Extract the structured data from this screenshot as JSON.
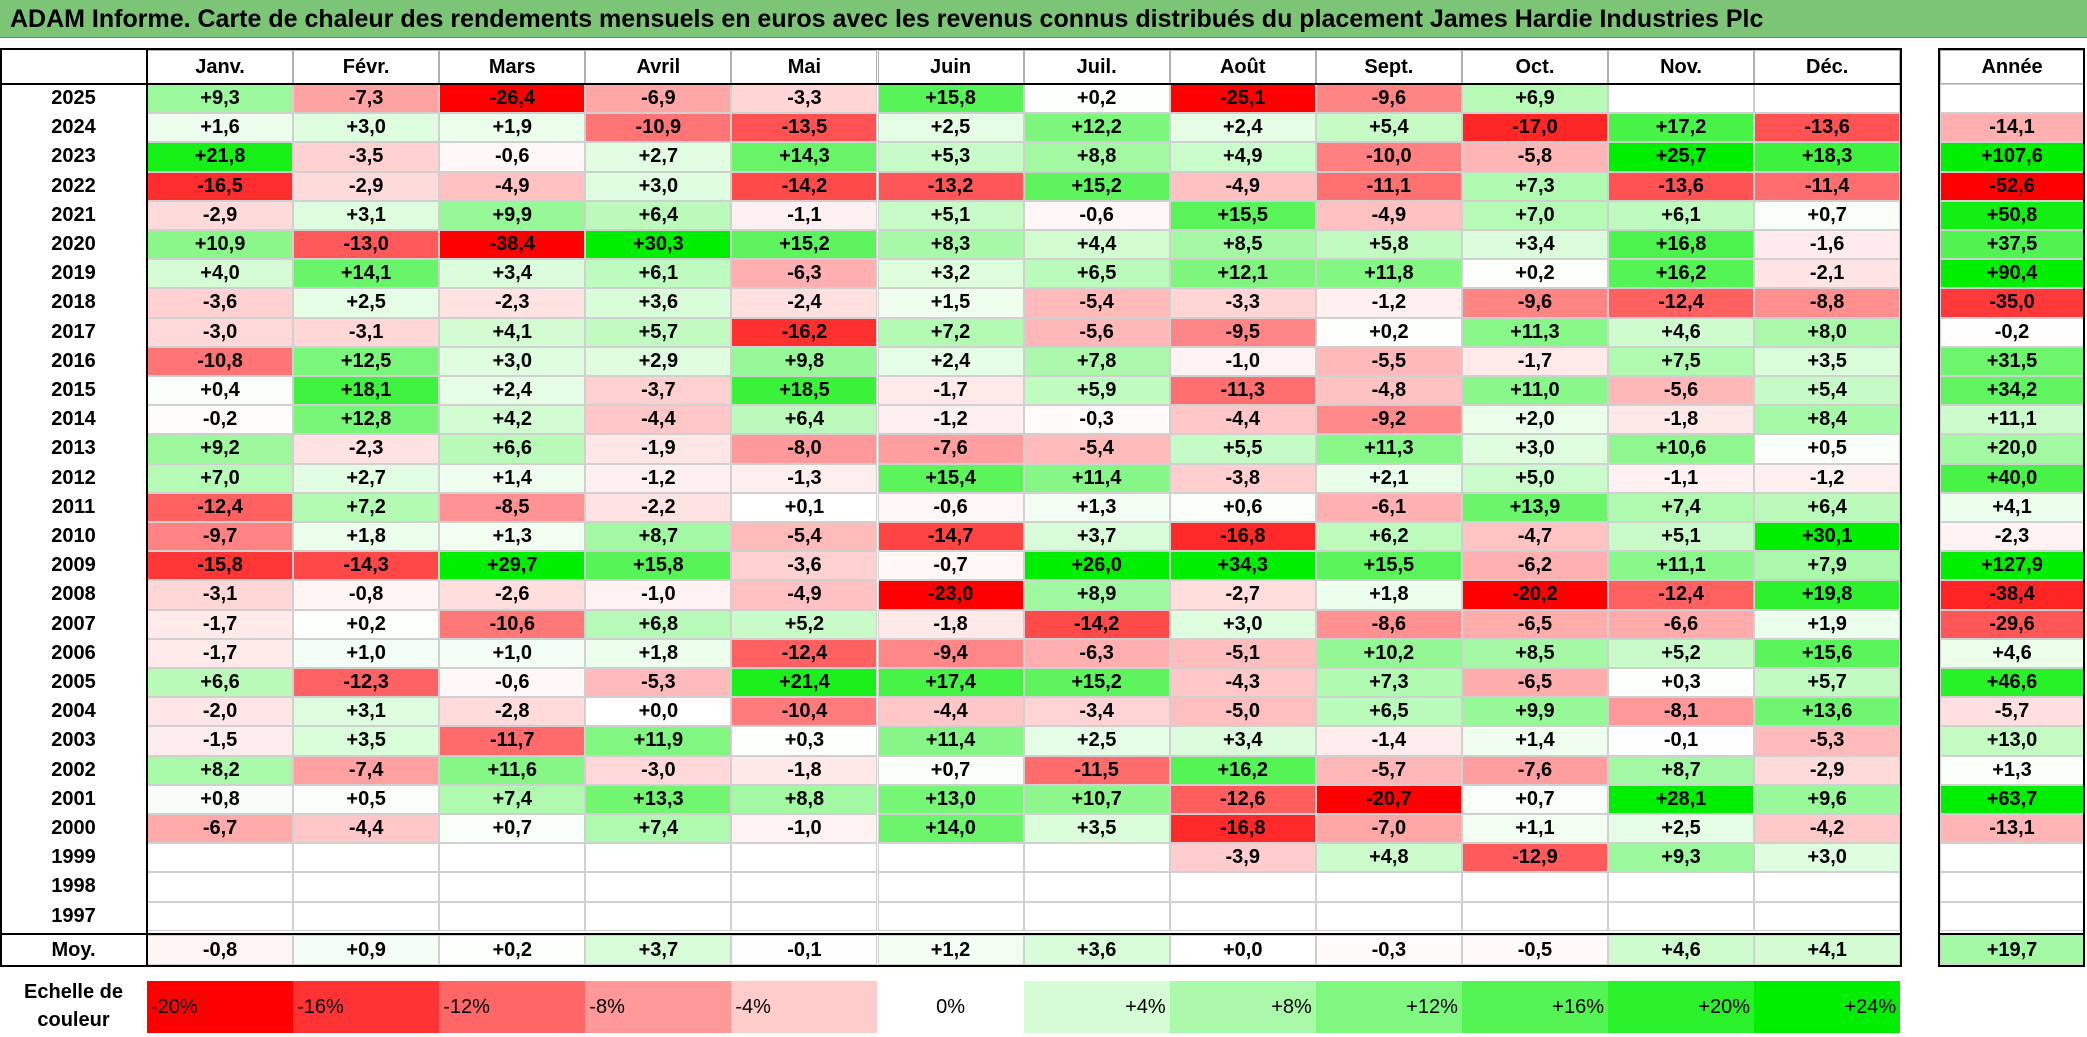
{
  "title": "ADAM Informe. Carte de chaleur des rendements mensuels en euros avec les revenus connus distribués du placement James Hardie Industries Plc",
  "chart_data": {
    "type": "heatmap",
    "months": [
      "Janv.",
      "Févr.",
      "Mars",
      "Avril",
      "Mai",
      "Juin",
      "Juil.",
      "Août",
      "Sept.",
      "Oct.",
      "Nov.",
      "Déc."
    ],
    "year_header": "Année",
    "average_label": "Moy.",
    "rows": [
      {
        "year": "2025",
        "values": [
          "+9,3",
          "-7,3",
          "-26,4",
          "-6,9",
          "-3,3",
          "+15,8",
          "+0,2",
          "-25,1",
          "-9,6",
          "+6,9",
          "",
          ""
        ],
        "annual": ""
      },
      {
        "year": "2024",
        "values": [
          "+1,6",
          "+3,0",
          "+1,9",
          "-10,9",
          "-13,5",
          "+2,5",
          "+12,2",
          "+2,4",
          "+5,4",
          "-17,0",
          "+17,2",
          "-13,6"
        ],
        "annual": "-14,1"
      },
      {
        "year": "2023",
        "values": [
          "+21,8",
          "-3,5",
          "-0,6",
          "+2,7",
          "+14,3",
          "+5,3",
          "+8,8",
          "+4,9",
          "-10,0",
          "-5,8",
          "+25,7",
          "+18,3"
        ],
        "annual": "+107,6"
      },
      {
        "year": "2022",
        "values": [
          "-16,5",
          "-2,9",
          "-4,9",
          "+3,0",
          "-14,2",
          "-13,2",
          "+15,2",
          "-4,9",
          "-11,1",
          "+7,3",
          "-13,6",
          "-11,4"
        ],
        "annual": "-52,6"
      },
      {
        "year": "2021",
        "values": [
          "-2,9",
          "+3,1",
          "+9,9",
          "+6,4",
          "-1,1",
          "+5,1",
          "-0,6",
          "+15,5",
          "-4,9",
          "+7,0",
          "+6,1",
          "+0,7"
        ],
        "annual": "+50,8"
      },
      {
        "year": "2020",
        "values": [
          "+10,9",
          "-13,0",
          "-38,4",
          "+30,3",
          "+15,2",
          "+8,3",
          "+4,4",
          "+8,5",
          "+5,8",
          "+3,4",
          "+16,8",
          "-1,6"
        ],
        "annual": "+37,5"
      },
      {
        "year": "2019",
        "values": [
          "+4,0",
          "+14,1",
          "+3,4",
          "+6,1",
          "-6,3",
          "+3,2",
          "+6,5",
          "+12,1",
          "+11,8",
          "+0,2",
          "+16,2",
          "-2,1"
        ],
        "annual": "+90,4"
      },
      {
        "year": "2018",
        "values": [
          "-3,6",
          "+2,5",
          "-2,3",
          "+3,6",
          "-2,4",
          "+1,5",
          "-5,4",
          "-3,3",
          "-1,2",
          "-9,6",
          "-12,4",
          "-8,8"
        ],
        "annual": "-35,0"
      },
      {
        "year": "2017",
        "values": [
          "-3,0",
          "-3,1",
          "+4,1",
          "+5,7",
          "-16,2",
          "+7,2",
          "-5,6",
          "-9,5",
          "+0,2",
          "+11,3",
          "+4,6",
          "+8,0"
        ],
        "annual": "-0,2"
      },
      {
        "year": "2016",
        "values": [
          "-10,8",
          "+12,5",
          "+3,0",
          "+2,9",
          "+9,8",
          "+2,4",
          "+7,8",
          "-1,0",
          "-5,5",
          "-1,7",
          "+7,5",
          "+3,5"
        ],
        "annual": "+31,5"
      },
      {
        "year": "2015",
        "values": [
          "+0,4",
          "+18,1",
          "+2,4",
          "-3,7",
          "+18,5",
          "-1,7",
          "+5,9",
          "-11,3",
          "-4,8",
          "+11,0",
          "-5,6",
          "+5,4"
        ],
        "annual": "+34,2"
      },
      {
        "year": "2014",
        "values": [
          "-0,2",
          "+12,8",
          "+4,2",
          "-4,4",
          "+6,4",
          "-1,2",
          "-0,3",
          "-4,4",
          "-9,2",
          "+2,0",
          "-1,8",
          "+8,4"
        ],
        "annual": "+11,1"
      },
      {
        "year": "2013",
        "values": [
          "+9,2",
          "-2,3",
          "+6,6",
          "-1,9",
          "-8,0",
          "-7,6",
          "-5,4",
          "+5,5",
          "+11,3",
          "+3,0",
          "+10,6",
          "+0,5"
        ],
        "annual": "+20,0"
      },
      {
        "year": "2012",
        "values": [
          "+7,0",
          "+2,7",
          "+1,4",
          "-1,2",
          "-1,3",
          "+15,4",
          "+11,4",
          "-3,8",
          "+2,1",
          "+5,0",
          "-1,1",
          "-1,2"
        ],
        "annual": "+40,0"
      },
      {
        "year": "2011",
        "values": [
          "-12,4",
          "+7,2",
          "-8,5",
          "-2,2",
          "+0,1",
          "-0,6",
          "+1,3",
          "+0,6",
          "-6,1",
          "+13,9",
          "+7,4",
          "+6,4"
        ],
        "annual": "+4,1"
      },
      {
        "year": "2010",
        "values": [
          "-9,7",
          "+1,8",
          "+1,3",
          "+8,7",
          "-5,4",
          "-14,7",
          "+3,7",
          "-16,8",
          "+6,2",
          "-4,7",
          "+5,1",
          "+30,1"
        ],
        "annual": "-2,3"
      },
      {
        "year": "2009",
        "values": [
          "-15,8",
          "-14,3",
          "+29,7",
          "+15,8",
          "-3,6",
          "-0,7",
          "+26,0",
          "+34,3",
          "+15,5",
          "-6,2",
          "+11,1",
          "+7,9"
        ],
        "annual": "+127,9"
      },
      {
        "year": "2008",
        "values": [
          "-3,1",
          "-0,8",
          "-2,6",
          "-1,0",
          "-4,9",
          "-23,0",
          "+8,9",
          "-2,7",
          "+1,8",
          "-20,2",
          "-12,4",
          "+19,8"
        ],
        "annual": "-38,4"
      },
      {
        "year": "2007",
        "values": [
          "-1,7",
          "+0,2",
          "-10,6",
          "+6,8",
          "+5,2",
          "-1,8",
          "-14,2",
          "+3,0",
          "-8,6",
          "-6,5",
          "-6,6",
          "+1,9"
        ],
        "annual": "-29,6"
      },
      {
        "year": "2006",
        "values": [
          "-1,7",
          "+1,0",
          "+1,0",
          "+1,8",
          "-12,4",
          "-9,4",
          "-6,3",
          "-5,1",
          "+10,2",
          "+8,5",
          "+5,2",
          "+15,6"
        ],
        "annual": "+4,6"
      },
      {
        "year": "2005",
        "values": [
          "+6,6",
          "-12,3",
          "-0,6",
          "-5,3",
          "+21,4",
          "+17,4",
          "+15,2",
          "-4,3",
          "+7,3",
          "-6,5",
          "+0,3",
          "+5,7"
        ],
        "annual": "+46,6"
      },
      {
        "year": "2004",
        "values": [
          "-2,0",
          "+3,1",
          "-2,8",
          "+0,0",
          "-10,4",
          "-4,4",
          "-3,4",
          "-5,0",
          "+6,5",
          "+9,9",
          "-8,1",
          "+13,6"
        ],
        "annual": "-5,7"
      },
      {
        "year": "2003",
        "values": [
          "-1,5",
          "+3,5",
          "-11,7",
          "+11,9",
          "+0,3",
          "+11,4",
          "+2,5",
          "+3,4",
          "-1,4",
          "+1,4",
          "-0,1",
          "-5,3"
        ],
        "annual": "+13,0"
      },
      {
        "year": "2002",
        "values": [
          "+8,2",
          "-7,4",
          "+11,6",
          "-3,0",
          "-1,8",
          "+0,7",
          "-11,5",
          "+16,2",
          "-5,7",
          "-7,6",
          "+8,7",
          "-2,9"
        ],
        "annual": "+1,3"
      },
      {
        "year": "2001",
        "values": [
          "+0,8",
          "+0,5",
          "+7,4",
          "+13,3",
          "+8,8",
          "+13,0",
          "+10,7",
          "-12,6",
          "-20,7",
          "+0,7",
          "+28,1",
          "+9,6"
        ],
        "annual": "+63,7"
      },
      {
        "year": "2000",
        "values": [
          "-6,7",
          "-4,4",
          "+0,7",
          "+7,4",
          "-1,0",
          "+14,0",
          "+3,5",
          "-16,8",
          "-7,0",
          "+1,1",
          "+2,5",
          "-4,2"
        ],
        "annual": "-13,1"
      },
      {
        "year": "1999",
        "values": [
          "",
          "",
          "",
          "",
          "",
          "",
          "",
          "-3,9",
          "+4,8",
          "-12,9",
          "+9,3",
          "+3,0"
        ],
        "annual": ""
      },
      {
        "year": "1998",
        "values": [
          "",
          "",
          "",
          "",
          "",
          "",
          "",
          "",
          "",
          "",
          "",
          ""
        ],
        "annual": ""
      },
      {
        "year": "1997",
        "values": [
          "",
          "",
          "",
          "",
          "",
          "",
          "",
          "",
          "",
          "",
          "",
          ""
        ],
        "annual": ""
      }
    ],
    "averages": [
      "-0,8",
      "+0,9",
      "+0,2",
      "+3,7",
      "-0,1",
      "+1,2",
      "+3,6",
      "+0,0",
      "-0,3",
      "-0,5",
      "+4,6",
      "+4,1"
    ],
    "average_annual": "+19,7",
    "color_scale": {
      "label": "Echelle de couleur",
      "stops": [
        {
          "label": "-20%",
          "value": -20
        },
        {
          "label": "-16%",
          "value": -16
        },
        {
          "label": "-12%",
          "value": -12
        },
        {
          "label": "-8%",
          "value": -8
        },
        {
          "label": "-4%",
          "value": -4
        },
        {
          "label": "0%",
          "value": 0
        },
        {
          "label": "+4%",
          "value": 4
        },
        {
          "label": "+8%",
          "value": 8
        },
        {
          "label": "+12%",
          "value": 12
        },
        {
          "label": "+16%",
          "value": 16
        },
        {
          "label": "+20%",
          "value": 20
        },
        {
          "label": "+24%",
          "value": 24
        }
      ],
      "negative_color": "#ff0000",
      "positive_color": "#00ee00",
      "neutral_color": "#ffffff"
    }
  }
}
